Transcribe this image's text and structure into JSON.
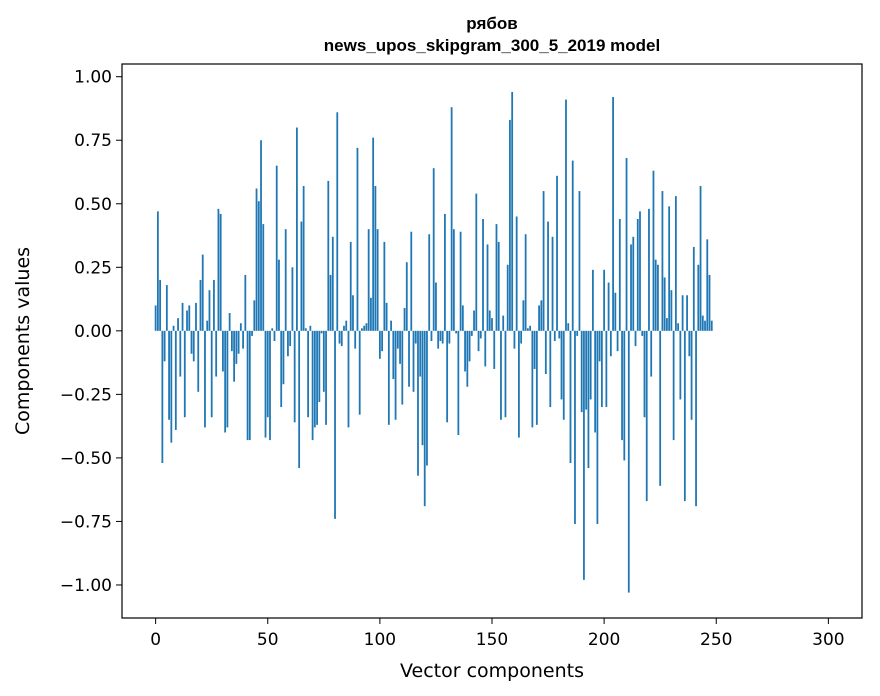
{
  "chart_data": {
    "type": "bar",
    "title": "рябов",
    "subtitle": "news_upos_skipgram_300_5_2019 model",
    "xlabel": "Vector components",
    "ylabel": "Components values",
    "xlim": [
      -15,
      315
    ],
    "ylim": [
      -1.13,
      1.05
    ],
    "xticks": [
      0,
      50,
      100,
      150,
      200,
      250,
      300
    ],
    "xtick_labels": [
      "0",
      "50",
      "100",
      "150",
      "200",
      "250",
      "300"
    ],
    "yticks": [
      1.0,
      0.75,
      0.5,
      0.25,
      0.0,
      -0.25,
      -0.5,
      -0.75,
      -1.0
    ],
    "ytick_labels": [
      "1.00",
      "0.75",
      "0.50",
      "0.25",
      "0.00",
      "−0.25",
      "−0.50",
      "−0.75",
      "−1.00"
    ],
    "bar_color": "#1f77b4",
    "grid": false,
    "values": [
      0.1,
      0.47,
      0.2,
      -0.52,
      -0.12,
      0.18,
      -0.35,
      -0.44,
      0.02,
      -0.39,
      0.05,
      -0.18,
      0.11,
      -0.34,
      0.08,
      0.1,
      -0.09,
      -0.12,
      0.11,
      -0.24,
      0.2,
      0.3,
      -0.38,
      0.04,
      0.16,
      -0.34,
      0.2,
      -0.18,
      0.48,
      0.46,
      -0.16,
      -0.4,
      -0.38,
      0.07,
      -0.08,
      -0.2,
      -0.13,
      -0.09,
      0.03,
      -0.07,
      0.22,
      -0.43,
      -0.43,
      -0.02,
      0.12,
      0.56,
      0.51,
      0.75,
      0.42,
      -0.42,
      -0.34,
      -0.43,
      0.01,
      -0.04,
      0.65,
      0.28,
      -0.3,
      -0.21,
      0.4,
      -0.1,
      -0.06,
      0.25,
      -0.36,
      0.8,
      -0.54,
      0.43,
      0.57,
      0.01,
      -0.34,
      0.02,
      -0.43,
      -0.38,
      -0.37,
      -0.28,
      -0.01,
      -0.24,
      -0.37,
      0.59,
      0.22,
      0.37,
      -0.74,
      0.86,
      -0.05,
      -0.06,
      0.02,
      0.04,
      -0.38,
      0.35,
      0.14,
      -0.07,
      0.72,
      -0.33,
      0.01,
      0.02,
      0.03,
      0.4,
      0.13,
      0.76,
      0.57,
      0.4,
      -0.11,
      -0.08,
      0.35,
      0.11,
      -0.37,
      0.04,
      -0.19,
      -0.35,
      -0.07,
      -0.13,
      -0.29,
      0.09,
      0.27,
      -0.22,
      0.39,
      -0.24,
      -0.05,
      -0.57,
      -0.18,
      -0.45,
      -0.69,
      -0.53,
      0.38,
      -0.04,
      0.64,
      0.19,
      -0.07,
      -0.04,
      -0.05,
      0.46,
      -0.36,
      -0.05,
      0.88,
      0.4,
      -0.01,
      -0.41,
      0.39,
      0.1,
      -0.16,
      -0.22,
      -0.12,
      -0.02,
      0.08,
      0.54,
      -0.08,
      -0.03,
      0.44,
      -0.14,
      0.34,
      0.08,
      0.05,
      -0.15,
      0.42,
      0.35,
      -0.35,
      0.06,
      -0.34,
      0.26,
      0.83,
      0.94,
      -0.07,
      0.45,
      -0.42,
      -0.05,
      0.12,
      0.38,
      0.01,
      0.02,
      -0.38,
      -0.15,
      -0.37,
      0.1,
      0.12,
      0.55,
      -0.17,
      0.43,
      -0.3,
      0.37,
      -0.04,
      0.61,
      -0.03,
      -0.27,
      -0.35,
      0.91,
      0.03,
      -0.52,
      0.67,
      -0.76,
      -0.02,
      0.55,
      -0.32,
      -0.98,
      -0.31,
      -0.54,
      -0.27,
      0.24,
      -0.4,
      -0.76,
      -0.12,
      -0.3,
      0.24,
      -0.3,
      0.19,
      -0.1,
      0.92,
      0.15,
      -0.08,
      0.44,
      -0.43,
      -0.51,
      0.68,
      -1.03,
      0.34,
      0.37,
      -0.06,
      0.44,
      0.47,
      -0.02,
      -0.34,
      -0.67,
      0.48,
      -0.18,
      0.63,
      0.28,
      0.26,
      -0.61,
      0.55,
      0.21,
      0.05,
      0.49,
      0.16,
      -0.43,
      0.53,
      0.03,
      -0.27,
      0.14,
      -0.67,
      0.14,
      -0.1,
      -0.35,
      0.33,
      -0.69,
      0.26,
      0.57,
      0.06,
      0.04,
      0.36,
      0.22,
      0.04
    ]
  }
}
